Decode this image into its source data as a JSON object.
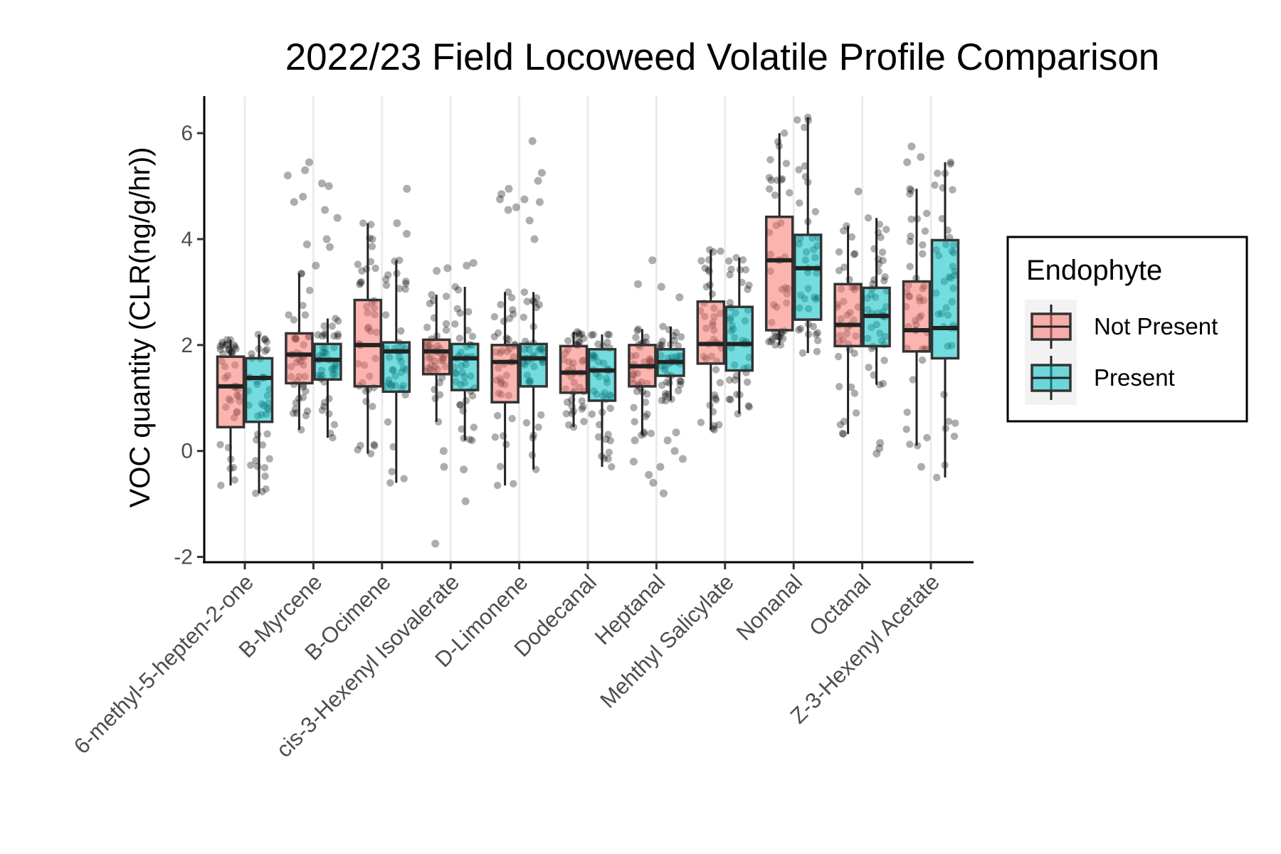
{
  "chart_data": {
    "type": "boxplot",
    "title": "2022/23 Field Locoweed Volatile Profile Comparison",
    "xlabel": "",
    "ylabel": "VOC quantity (CLR(ng/g/hr))",
    "ylim": [
      -2.1,
      6.7
    ],
    "yticks": [
      -2,
      0,
      2,
      4,
      6
    ],
    "grid": "vertical-major",
    "categories": [
      "6-methyl-5-hepten-2-one",
      "B-Myrcene",
      "B-Ocimene",
      "cis-3-Hexenyl Isovalerate",
      "D-Limonene",
      "Dodecanal",
      "Heptanal",
      "Mehthyl Salicylate",
      "Nonanal",
      "Octanal",
      "Z-3-Hexenyl Acetate"
    ],
    "legend": {
      "title": "Endophyte",
      "position": "right"
    },
    "series": [
      {
        "name": "Not Present",
        "color": "#F8766D",
        "boxes": [
          {
            "min": -0.65,
            "q1": 0.45,
            "median": 1.22,
            "q3": 1.78,
            "max": 2.1
          },
          {
            "min": 0.4,
            "q1": 1.28,
            "median": 1.82,
            "q3": 2.22,
            "max": 3.35
          },
          {
            "min": -0.05,
            "q1": 1.22,
            "median": 2.0,
            "q3": 2.85,
            "max": 4.3
          },
          {
            "min": 0.55,
            "q1": 1.45,
            "median": 1.88,
            "q3": 2.1,
            "max": 2.95
          },
          {
            "min": -0.65,
            "q1": 0.92,
            "median": 1.68,
            "q3": 2.0,
            "max": 3.0
          },
          {
            "min": 0.45,
            "q1": 1.1,
            "median": 1.48,
            "q3": 1.98,
            "max": 2.25
          },
          {
            "min": 0.3,
            "q1": 1.22,
            "median": 1.6,
            "q3": 2.0,
            "max": 2.3
          },
          {
            "min": 0.4,
            "q1": 1.65,
            "median": 2.02,
            "q3": 2.82,
            "max": 3.8
          },
          {
            "min": 2.0,
            "q1": 2.28,
            "median": 3.6,
            "q3": 4.42,
            "max": 6.0
          },
          {
            "min": 0.32,
            "q1": 1.98,
            "median": 2.38,
            "q3": 3.15,
            "max": 4.25
          },
          {
            "min": 0.1,
            "q1": 1.88,
            "median": 2.28,
            "q3": 3.2,
            "max": 4.95
          }
        ],
        "outliers": [
          [],
          [
            5.45,
            5.3,
            5.2,
            4.8,
            4.7,
            3.9
          ],
          [],
          [
            3.45,
            3.4,
            0.0,
            -0.3,
            -1.75
          ],
          [
            4.95,
            4.85,
            4.75,
            4.6,
            4.55
          ],
          [],
          [
            3.6,
            3.15,
            0.2,
            -0.2,
            -0.45,
            -0.6
          ],
          [],
          [],
          [
            4.9
          ],
          [
            5.75,
            5.55,
            5.45,
            -0.3
          ]
        ]
      },
      {
        "name": "Present",
        "color": "#00BFC4",
        "boxes": [
          {
            "min": -0.8,
            "q1": 0.55,
            "median": 1.38,
            "q3": 1.75,
            "max": 2.2
          },
          {
            "min": 0.25,
            "q1": 1.35,
            "median": 1.72,
            "q3": 2.02,
            "max": 2.5
          },
          {
            "min": -0.6,
            "q1": 1.12,
            "median": 1.88,
            "q3": 2.05,
            "max": 3.6
          },
          {
            "min": 0.2,
            "q1": 1.15,
            "median": 1.75,
            "q3": 2.02,
            "max": 3.1
          },
          {
            "min": -0.35,
            "q1": 1.22,
            "median": 1.75,
            "q3": 2.02,
            "max": 3.0
          },
          {
            "min": -0.3,
            "q1": 0.95,
            "median": 1.52,
            "q3": 1.92,
            "max": 2.2
          },
          {
            "min": 0.95,
            "q1": 1.42,
            "median": 1.68,
            "q3": 1.92,
            "max": 2.35
          },
          {
            "min": 0.7,
            "q1": 1.52,
            "median": 2.02,
            "q3": 2.72,
            "max": 3.65
          },
          {
            "min": 1.85,
            "q1": 2.48,
            "median": 3.45,
            "q3": 4.08,
            "max": 6.3
          },
          {
            "min": 1.25,
            "q1": 1.98,
            "median": 2.55,
            "q3": 3.08,
            "max": 4.4
          },
          {
            "min": -0.5,
            "q1": 1.75,
            "median": 2.32,
            "q3": 3.98,
            "max": 5.45
          }
        ],
        "outliers": [
          [],
          [
            5.05,
            5.0,
            4.55,
            4.4,
            4.0,
            3.85,
            3.5
          ],
          [
            4.95,
            4.3,
            4.1
          ],
          [
            3.55,
            3.5,
            -0.35,
            -0.95
          ],
          [
            5.85,
            5.25,
            5.1,
            4.75,
            4.7,
            4.35,
            4.0
          ],
          [],
          [
            3.1,
            2.9,
            0.35,
            0.2,
            0.0,
            -0.15,
            -0.3,
            -0.8
          ],
          [],
          [],
          [
            0.15,
            0.05,
            -0.05
          ],
          []
        ]
      }
    ]
  }
}
